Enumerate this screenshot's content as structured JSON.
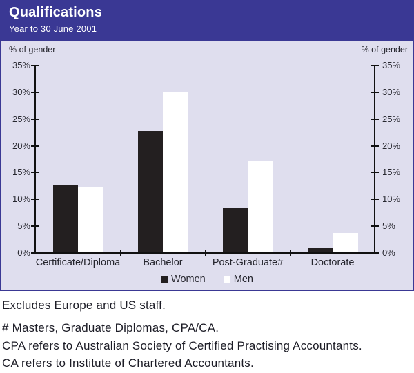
{
  "header": {
    "title": "Qualifications",
    "subtitle": "Year to 30 June 2001"
  },
  "chart_data": {
    "type": "bar",
    "title": "Qualifications",
    "subtitle": "Year to 30 June 2001",
    "categories": [
      "Certificate/Diploma",
      "Bachelor",
      "Post-Graduate#",
      "Doctorate"
    ],
    "series": [
      {
        "name": "Women",
        "color": "#231F20",
        "values": [
          12.5,
          22.6,
          8.3,
          0.8
        ]
      },
      {
        "name": "Men",
        "color": "#FFFFFF",
        "values": [
          12.2,
          29.8,
          17.0,
          3.6
        ]
      }
    ],
    "ylabel": "% of gender",
    "ylim": [
      0,
      35
    ],
    "ytick_step": 5,
    "ytick_labels": [
      "0%",
      "5%",
      "10%",
      "15%",
      "20%",
      "25%",
      "30%",
      "35%"
    ],
    "grid": false,
    "legend_position": "bottom-center",
    "dual_y_axis": true
  },
  "notes": {
    "line1": "Excludes Europe and US staff.",
    "line2": "# Masters, Graduate Diplomas, CPA/CA.",
    "line3": "CPA refers to Australian Society of Certified Practising Accountants.",
    "line4": "CA refers to Institute of Chartered Accountants."
  },
  "colors": {
    "header_bg": "#3A3894",
    "panel_bg": "#DFDEEE",
    "axis": "#111111",
    "bar_women": "#231F20",
    "bar_men": "#FFFFFF",
    "text": "#26262E",
    "notes_text": "#1C1C26"
  }
}
